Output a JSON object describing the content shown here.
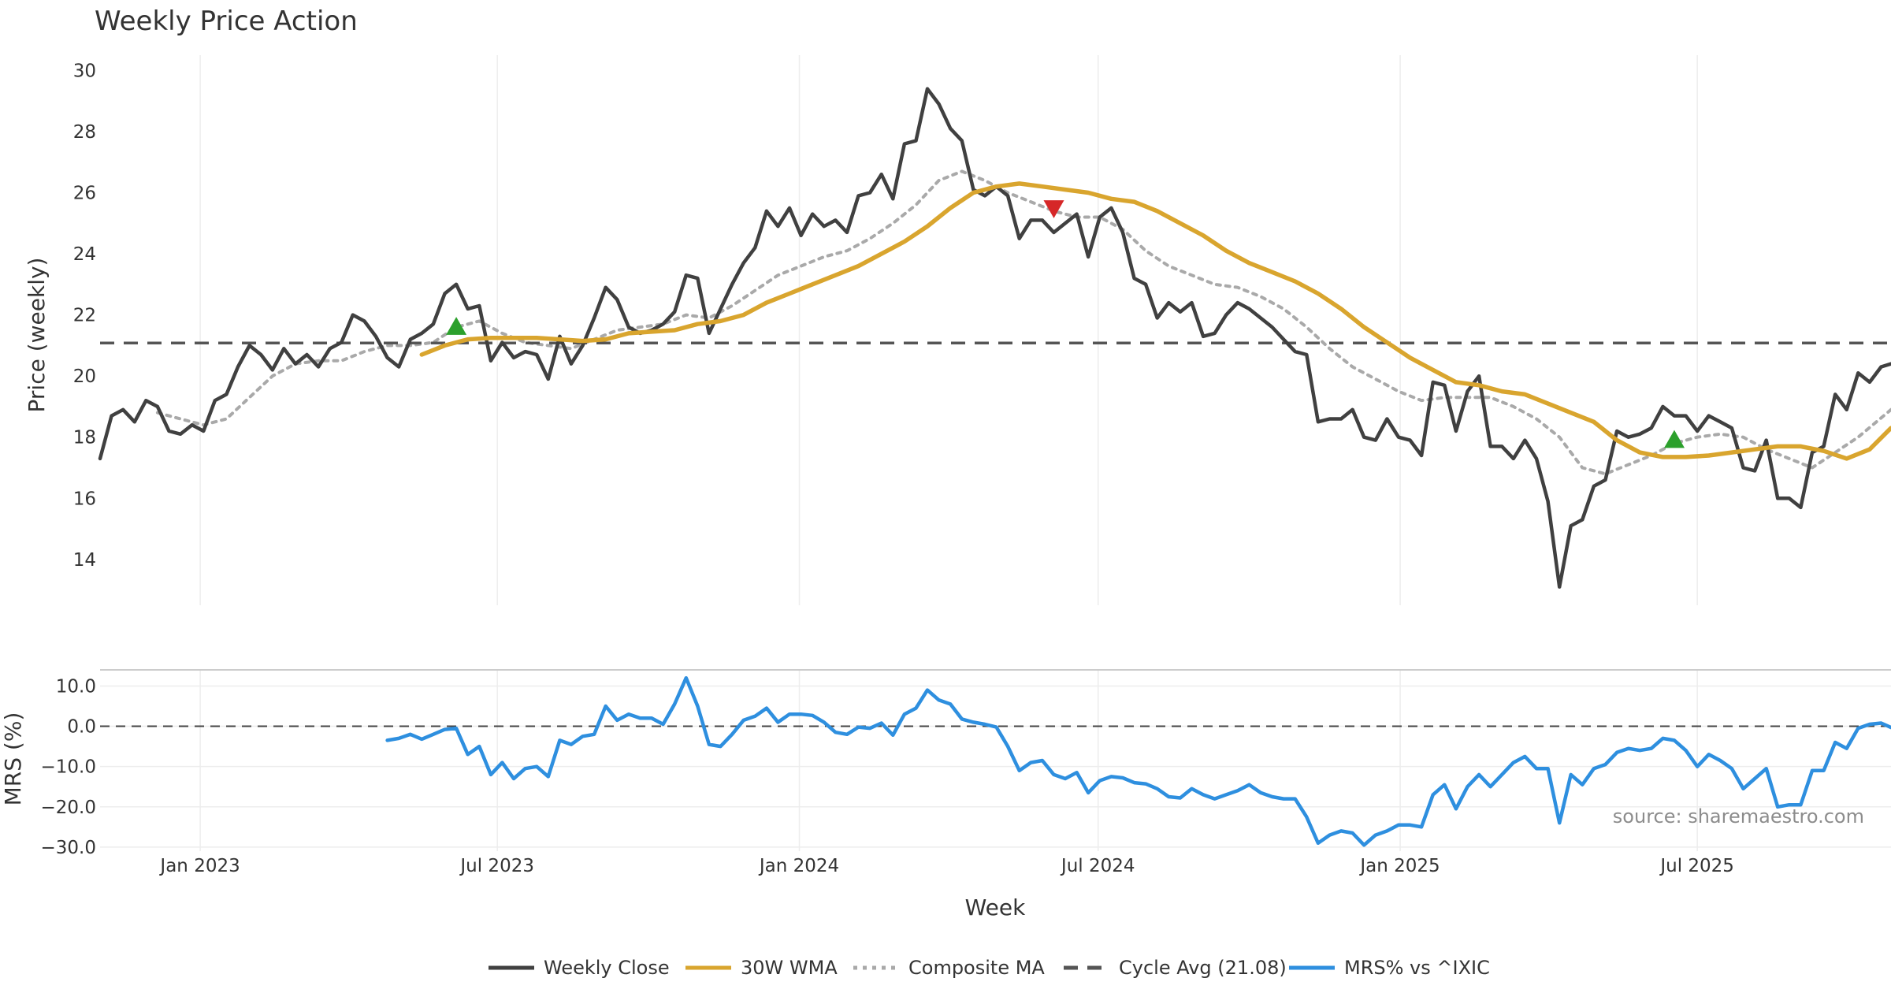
{
  "chart_data": {
    "type": "line",
    "title": "Weekly Price Action",
    "xlabel": "Week",
    "x_ticks": [
      "Jan 2023",
      "Jul 2023",
      "Jan 2024",
      "Jul 2024",
      "Jan 2025",
      "Jul 2025"
    ],
    "x_range": [
      "2022-11-01",
      "2025-10-27"
    ],
    "price_panel": {
      "ylabel": "Price (weekly)",
      "ylim": [
        12.5,
        30.5
      ],
      "y_ticks": [
        "14",
        "16",
        "18",
        "20",
        "22",
        "24",
        "26",
        "28",
        "30"
      ]
    },
    "mrs_panel": {
      "ylabel": "MRS (%)",
      "ylim": [
        -31,
        14
      ],
      "y_ticks": [
        "10.0",
        "0.0",
        "−10.0",
        "−20.0",
        "−30.0"
      ]
    },
    "series": [
      {
        "name": "Weekly Close",
        "color": "#404040",
        "style": "solid",
        "x": [
          "2022-11-01",
          "2022-11-08",
          "2022-11-15",
          "2022-11-22",
          "2022-11-29",
          "2022-12-06",
          "2022-12-13",
          "2022-12-20",
          "2022-12-27",
          "2023-01-03",
          "2023-01-10",
          "2023-01-17",
          "2023-01-24",
          "2023-01-31",
          "2023-02-07",
          "2023-02-14",
          "2023-02-21",
          "2023-02-28",
          "2023-03-07",
          "2023-03-14",
          "2023-03-21",
          "2023-03-28",
          "2023-04-04",
          "2023-04-11",
          "2023-04-18",
          "2023-04-25",
          "2023-05-02",
          "2023-05-09",
          "2023-05-16",
          "2023-05-23",
          "2023-05-30",
          "2023-06-06",
          "2023-06-13",
          "2023-06-20",
          "2023-06-27",
          "2023-07-04",
          "2023-07-11",
          "2023-07-18",
          "2023-07-25",
          "2023-08-01",
          "2023-08-08",
          "2023-08-15",
          "2023-08-22",
          "2023-08-29",
          "2023-09-05",
          "2023-09-12",
          "2023-09-19",
          "2023-09-26",
          "2023-10-03",
          "2023-10-10",
          "2023-10-17",
          "2023-10-24",
          "2023-10-31",
          "2023-11-07",
          "2023-11-14",
          "2023-11-21",
          "2023-11-28",
          "2023-12-05",
          "2023-12-12",
          "2023-12-19",
          "2023-12-26",
          "2024-01-02",
          "2024-01-09",
          "2024-01-16",
          "2024-01-23",
          "2024-01-30",
          "2024-02-06",
          "2024-02-13",
          "2024-02-20",
          "2024-02-27",
          "2024-03-05",
          "2024-03-12",
          "2024-03-19",
          "2024-03-26",
          "2024-04-02",
          "2024-04-09",
          "2024-04-16",
          "2024-04-23",
          "2024-04-30",
          "2024-05-07",
          "2024-05-14",
          "2024-05-21",
          "2024-05-28",
          "2024-06-04",
          "2024-06-11",
          "2024-06-18",
          "2024-06-25",
          "2024-07-02",
          "2024-07-09",
          "2024-07-16",
          "2024-07-23",
          "2024-07-30",
          "2024-08-06",
          "2024-08-13",
          "2024-08-20",
          "2024-08-27",
          "2024-09-03",
          "2024-09-10",
          "2024-09-17",
          "2024-09-24",
          "2024-10-01",
          "2024-10-08",
          "2024-10-15",
          "2024-10-22",
          "2024-10-29",
          "2024-11-05",
          "2024-11-12",
          "2024-11-19",
          "2024-11-26",
          "2024-12-03",
          "2024-12-10",
          "2024-12-17",
          "2024-12-24",
          "2024-12-31",
          "2025-01-07",
          "2025-01-14",
          "2025-01-21",
          "2025-01-28",
          "2025-02-04",
          "2025-02-11",
          "2025-02-18",
          "2025-02-25",
          "2025-03-04",
          "2025-03-11",
          "2025-03-18",
          "2025-03-25",
          "2025-04-01",
          "2025-04-08",
          "2025-04-15",
          "2025-04-22",
          "2025-04-29",
          "2025-05-06",
          "2025-05-13",
          "2025-05-20",
          "2025-05-27",
          "2025-06-03",
          "2025-06-10",
          "2025-06-17",
          "2025-06-24",
          "2025-07-01",
          "2025-07-08",
          "2025-07-15",
          "2025-07-22",
          "2025-07-29",
          "2025-08-05",
          "2025-08-12",
          "2025-08-19",
          "2025-08-26",
          "2025-09-02",
          "2025-09-09",
          "2025-09-16",
          "2025-09-23",
          "2025-09-30",
          "2025-10-07",
          "2025-10-14",
          "2025-10-21",
          "2025-10-27"
        ],
        "values": [
          17.3,
          18.7,
          18.9,
          18.5,
          19.2,
          19.0,
          18.2,
          18.1,
          18.4,
          18.2,
          19.2,
          19.4,
          20.3,
          21.0,
          20.7,
          20.2,
          20.9,
          20.4,
          20.7,
          20.3,
          20.9,
          21.1,
          22.0,
          21.8,
          21.3,
          20.6,
          20.3,
          21.2,
          21.4,
          21.7,
          22.7,
          23.0,
          22.2,
          22.3,
          20.5,
          21.1,
          20.6,
          20.8,
          20.7,
          19.9,
          21.3,
          20.4,
          21.0,
          21.9,
          22.9,
          22.5,
          21.6,
          21.4,
          21.5,
          21.7,
          22.1,
          23.3,
          23.2,
          21.4,
          22.2,
          23.0,
          23.7,
          24.2,
          25.4,
          24.9,
          25.5,
          24.6,
          25.3,
          24.9,
          25.1,
          24.7,
          25.9,
          26.0,
          26.6,
          25.8,
          27.6,
          27.7,
          29.4,
          28.9,
          28.1,
          27.7,
          26.1,
          25.9,
          26.2,
          25.9,
          24.5,
          25.1,
          25.1,
          24.7,
          25.0,
          25.3,
          23.9,
          25.2,
          25.5,
          24.7,
          23.2,
          23.0,
          21.9,
          22.4,
          22.1,
          22.4,
          21.3,
          21.4,
          22.0,
          22.4,
          22.2,
          21.9,
          21.6,
          21.2,
          20.8,
          20.7,
          18.5,
          18.6,
          18.6,
          18.9,
          18.0,
          17.9,
          18.6,
          18.0,
          17.9,
          17.4,
          19.8,
          19.7,
          18.2,
          19.5,
          20.0,
          17.7,
          17.7,
          17.3,
          17.9,
          17.3,
          15.9,
          13.1,
          15.1,
          15.3,
          16.4,
          16.6,
          18.2,
          18.0,
          18.1,
          18.3,
          19.0,
          18.7,
          18.7,
          18.2,
          18.7,
          18.5,
          18.3,
          17.0,
          16.9,
          17.9,
          16.0,
          16.0,
          15.7,
          17.5,
          17.7,
          19.4,
          18.9,
          20.1,
          19.8,
          20.3,
          20.4
        ]
      },
      {
        "name": "30W WMA",
        "color": "#d9a52e",
        "style": "solid",
        "x": [
          "2023-05-16",
          "2023-05-30",
          "2023-06-13",
          "2023-06-27",
          "2023-07-11",
          "2023-07-25",
          "2023-08-08",
          "2023-08-22",
          "2023-09-05",
          "2023-09-19",
          "2023-10-03",
          "2023-10-17",
          "2023-10-31",
          "2023-11-14",
          "2023-11-28",
          "2023-12-12",
          "2023-12-26",
          "2024-01-09",
          "2024-01-23",
          "2024-02-06",
          "2024-02-20",
          "2024-03-05",
          "2024-03-19",
          "2024-04-02",
          "2024-04-16",
          "2024-04-30",
          "2024-05-14",
          "2024-05-28",
          "2024-06-11",
          "2024-06-25",
          "2024-07-09",
          "2024-07-23",
          "2024-08-06",
          "2024-08-20",
          "2024-09-03",
          "2024-09-17",
          "2024-10-01",
          "2024-10-15",
          "2024-10-29",
          "2024-11-12",
          "2024-11-26",
          "2024-12-10",
          "2024-12-24",
          "2025-01-07",
          "2025-01-21",
          "2025-02-04",
          "2025-02-18",
          "2025-03-04",
          "2025-03-18",
          "2025-04-01",
          "2025-04-15",
          "2025-04-29",
          "2025-05-13",
          "2025-05-27",
          "2025-06-10",
          "2025-06-24",
          "2025-07-08",
          "2025-07-22",
          "2025-08-05",
          "2025-08-19",
          "2025-09-02",
          "2025-09-16",
          "2025-09-30",
          "2025-10-14",
          "2025-10-27"
        ],
        "values": [
          20.7,
          21.0,
          21.2,
          21.25,
          21.25,
          21.25,
          21.2,
          21.15,
          21.2,
          21.4,
          21.45,
          21.5,
          21.7,
          21.8,
          22.0,
          22.4,
          22.7,
          23.0,
          23.3,
          23.6,
          24.0,
          24.4,
          24.9,
          25.5,
          26.0,
          26.2,
          26.3,
          26.2,
          26.1,
          26.0,
          25.8,
          25.7,
          25.4,
          25.0,
          24.6,
          24.1,
          23.7,
          23.4,
          23.1,
          22.7,
          22.2,
          21.6,
          21.1,
          20.6,
          20.2,
          19.8,
          19.7,
          19.5,
          19.4,
          19.1,
          18.8,
          18.5,
          17.9,
          17.5,
          17.35,
          17.35,
          17.4,
          17.5,
          17.6,
          17.7,
          17.7,
          17.55,
          17.3,
          17.6,
          18.3
        ]
      },
      {
        "name": "Composite MA",
        "color": "#a9a9a9",
        "style": "dotted",
        "x": [
          "2022-12-06",
          "2022-12-20",
          "2023-01-03",
          "2023-01-17",
          "2023-01-31",
          "2023-02-14",
          "2023-02-28",
          "2023-03-14",
          "2023-03-28",
          "2023-04-11",
          "2023-04-25",
          "2023-05-09",
          "2023-05-23",
          "2023-06-06",
          "2023-06-20",
          "2023-07-04",
          "2023-07-18",
          "2023-08-01",
          "2023-08-15",
          "2023-08-29",
          "2023-09-12",
          "2023-09-26",
          "2023-10-10",
          "2023-10-24",
          "2023-11-07",
          "2023-11-21",
          "2023-12-05",
          "2023-12-19",
          "2024-01-02",
          "2024-01-16",
          "2024-01-30",
          "2024-02-13",
          "2024-02-27",
          "2024-03-12",
          "2024-03-26",
          "2024-04-09",
          "2024-04-23",
          "2024-05-07",
          "2024-05-21",
          "2024-06-04",
          "2024-06-18",
          "2024-07-02",
          "2024-07-16",
          "2024-07-30",
          "2024-08-13",
          "2024-08-27",
          "2024-09-10",
          "2024-09-24",
          "2024-10-08",
          "2024-10-22",
          "2024-11-05",
          "2024-11-19",
          "2024-12-03",
          "2024-12-17",
          "2024-12-31",
          "2025-01-14",
          "2025-01-28",
          "2025-02-11",
          "2025-02-25",
          "2025-03-11",
          "2025-03-25",
          "2025-04-08",
          "2025-04-22",
          "2025-05-06",
          "2025-05-20",
          "2025-06-03",
          "2025-06-17",
          "2025-07-01",
          "2025-07-15",
          "2025-07-29",
          "2025-08-12",
          "2025-08-26",
          "2025-09-09",
          "2025-09-23",
          "2025-10-07",
          "2025-10-27"
        ],
        "values": [
          18.8,
          18.6,
          18.4,
          18.6,
          19.3,
          20.0,
          20.4,
          20.5,
          20.5,
          20.8,
          21.0,
          21.0,
          21.1,
          21.6,
          21.8,
          21.4,
          21.1,
          21.0,
          20.9,
          21.2,
          21.5,
          21.6,
          21.7,
          22.0,
          21.9,
          22.3,
          22.8,
          23.3,
          23.6,
          23.9,
          24.1,
          24.5,
          25.0,
          25.6,
          26.4,
          26.7,
          26.4,
          26.0,
          25.7,
          25.4,
          25.2,
          25.2,
          24.8,
          24.1,
          23.6,
          23.3,
          23.0,
          22.9,
          22.6,
          22.2,
          21.6,
          20.9,
          20.3,
          19.9,
          19.5,
          19.2,
          19.3,
          19.3,
          19.3,
          19.0,
          18.6,
          18.0,
          17.0,
          16.8,
          17.1,
          17.4,
          17.8,
          18.0,
          18.1,
          18.0,
          17.6,
          17.3,
          17.0,
          17.5,
          18.0,
          18.9
        ]
      },
      {
        "name": "Cycle Avg (21.08)",
        "color": "#555555",
        "style": "dashed",
        "y": 21.08
      }
    ],
    "markers": [
      {
        "type": "buy",
        "shape": "triangle-up",
        "color": "#2ca02c",
        "x": "2023-06-06",
        "y": 21.6
      },
      {
        "type": "sell",
        "shape": "triangle-down",
        "color": "#d62728",
        "x": "2024-06-04",
        "y": 25.5
      },
      {
        "type": "buy",
        "shape": "triangle-up",
        "color": "#2ca02c",
        "x": "2025-06-17",
        "y": 17.9
      }
    ],
    "mrs_series": {
      "name": "MRS% vs ^IXIC",
      "color": "#2e8fdf",
      "style": "solid",
      "x": [
        "2023-04-25",
        "2023-05-02",
        "2023-05-09",
        "2023-05-16",
        "2023-05-23",
        "2023-05-30",
        "2023-06-06",
        "2023-06-13",
        "2023-06-20",
        "2023-06-27",
        "2023-07-04",
        "2023-07-11",
        "2023-07-18",
        "2023-07-25",
        "2023-08-01",
        "2023-08-08",
        "2023-08-15",
        "2023-08-22",
        "2023-08-29",
        "2023-09-05",
        "2023-09-12",
        "2023-09-19",
        "2023-09-26",
        "2023-10-03",
        "2023-10-10",
        "2023-10-17",
        "2023-10-24",
        "2023-10-31",
        "2023-11-07",
        "2023-11-14",
        "2023-11-21",
        "2023-11-28",
        "2023-12-05",
        "2023-12-12",
        "2023-12-19",
        "2023-12-26",
        "2024-01-02",
        "2024-01-09",
        "2024-01-16",
        "2024-01-23",
        "2024-01-30",
        "2024-02-06",
        "2024-02-13",
        "2024-02-20",
        "2024-02-27",
        "2024-03-05",
        "2024-03-12",
        "2024-03-19",
        "2024-03-26",
        "2024-04-02",
        "2024-04-09",
        "2024-04-16",
        "2024-04-23",
        "2024-04-30",
        "2024-05-07",
        "2024-05-14",
        "2024-05-21",
        "2024-05-28",
        "2024-06-04",
        "2024-06-11",
        "2024-06-18",
        "2024-06-25",
        "2024-07-02",
        "2024-07-09",
        "2024-07-16",
        "2024-07-23",
        "2024-07-30",
        "2024-08-06",
        "2024-08-13",
        "2024-08-20",
        "2024-08-27",
        "2024-09-03",
        "2024-09-10",
        "2024-09-17",
        "2024-09-24",
        "2024-10-01",
        "2024-10-08",
        "2024-10-15",
        "2024-10-22",
        "2024-10-29",
        "2024-11-05",
        "2024-11-12",
        "2024-11-19",
        "2024-11-26",
        "2024-12-03",
        "2024-12-10",
        "2024-12-17",
        "2024-12-24",
        "2024-12-31",
        "2025-01-07",
        "2025-01-14",
        "2025-01-21",
        "2025-01-28",
        "2025-02-04",
        "2025-02-11",
        "2025-02-18",
        "2025-02-25",
        "2025-03-04",
        "2025-03-11",
        "2025-03-18",
        "2025-03-25",
        "2025-04-01",
        "2025-04-08",
        "2025-04-15",
        "2025-04-22",
        "2025-04-29",
        "2025-05-06",
        "2025-05-13",
        "2025-05-20",
        "2025-05-27",
        "2025-06-03",
        "2025-06-10",
        "2025-06-17",
        "2025-06-24",
        "2025-07-01",
        "2025-07-08",
        "2025-07-15",
        "2025-07-22",
        "2025-07-29",
        "2025-08-05",
        "2025-08-12",
        "2025-08-19",
        "2025-08-26",
        "2025-09-02",
        "2025-09-09",
        "2025-09-16",
        "2025-09-23",
        "2025-09-30",
        "2025-10-07",
        "2025-10-14",
        "2025-10-21",
        "2025-10-27"
      ],
      "values": [
        -3.5,
        -3.0,
        -2.0,
        -3.2,
        -2.0,
        -0.8,
        -0.5,
        -7.0,
        -5.0,
        -12.0,
        -9.0,
        -13.0,
        -10.5,
        -10.0,
        -12.5,
        -3.5,
        -4.5,
        -2.5,
        -2.0,
        5.0,
        1.5,
        3.0,
        2.0,
        2.0,
        0.5,
        5.5,
        12.0,
        5.0,
        -4.5,
        -5.0,
        -2.0,
        1.5,
        2.5,
        4.5,
        1.0,
        3.0,
        3.0,
        2.7,
        1.0,
        -1.5,
        -2.0,
        -0.2,
        -0.5,
        0.8,
        -2.2,
        3.0,
        4.5,
        9.0,
        6.5,
        5.5,
        1.8,
        1.0,
        0.5,
        -0.2,
        -5.0,
        -11.0,
        -9.0,
        -8.5,
        -12.0,
        -13.0,
        -11.5,
        -16.5,
        -13.5,
        -12.5,
        -12.8,
        -14.0,
        -14.3,
        -15.5,
        -17.5,
        -17.8,
        -15.5,
        -17.0,
        -18.0,
        -17.0,
        -16.0,
        -14.5,
        -16.5,
        -17.5,
        -18.0,
        -18.0,
        -22.5,
        -29.0,
        -27.0,
        -26.0,
        -26.5,
        -29.5,
        -27.0,
        -26.0,
        -24.5,
        -24.5,
        -25.0,
        -17.0,
        -14.5,
        -20.5,
        -15.0,
        -12.0,
        -15.0,
        -12.0,
        -9.0,
        -7.5,
        -10.5,
        -10.5,
        -24.0,
        -12.0,
        -14.5,
        -10.5,
        -9.5,
        -6.5,
        -5.5,
        -6.0,
        -5.5,
        -3.0,
        -3.5,
        -6.0,
        -10.0,
        -7.0,
        -8.5,
        -10.5,
        -15.5,
        -13.0,
        -10.5,
        -20.0,
        -19.5,
        -19.5,
        -11.0,
        -11.0,
        -4.0,
        -5.5,
        -0.5,
        0.5,
        0.8,
        -0.3
      ]
    },
    "mrs_zero_line": 0.0,
    "legend": {
      "placement": "bottom-center",
      "entries": [
        "Weekly Close",
        "30W WMA",
        "Composite MA",
        "Cycle Avg (21.08)",
        "MRS% vs ^IXIC"
      ]
    },
    "annotations": [
      {
        "text": "source: sharemaestro.com",
        "placement": "bottom-right of MRS panel"
      }
    ],
    "grid": "vertical gridlines on x ticks, horizontal gridlines in MRS panel"
  }
}
